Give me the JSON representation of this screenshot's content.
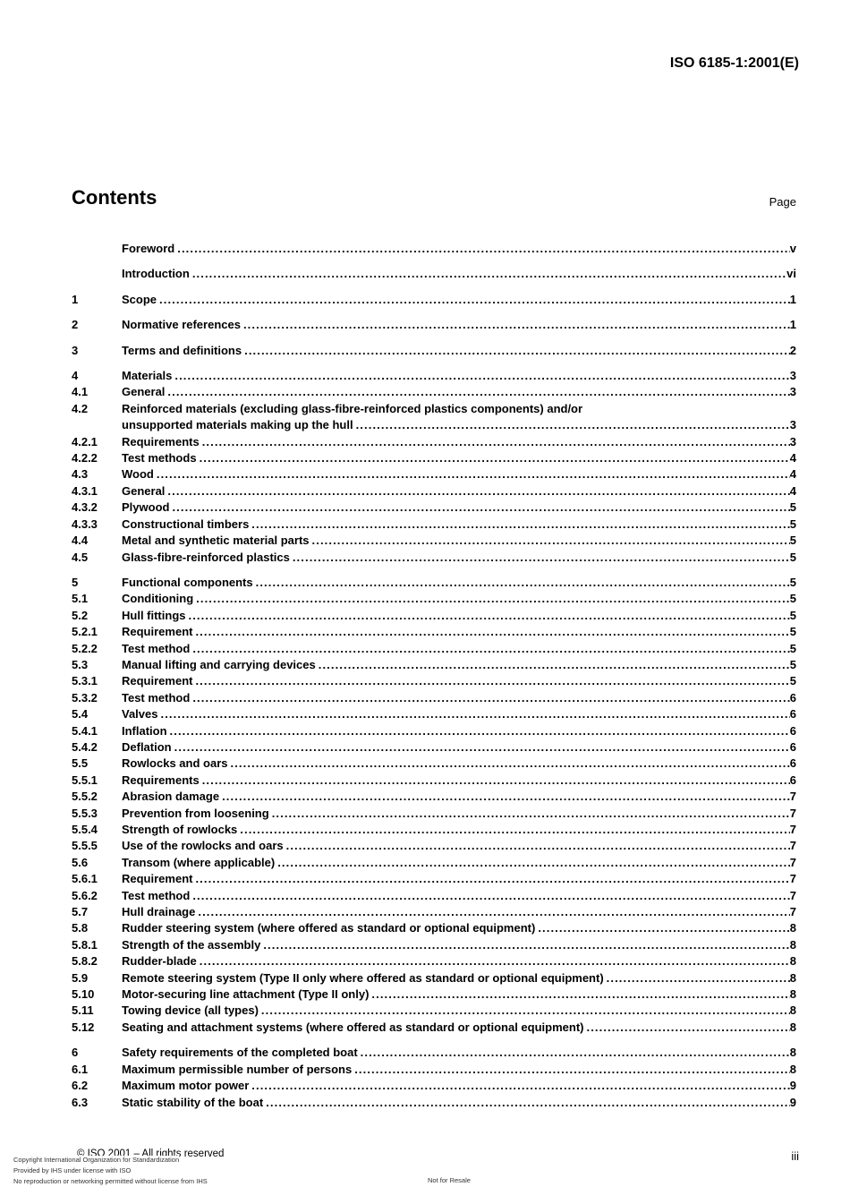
{
  "header": {
    "doc_id": "ISO 6185-1:2001(E)"
  },
  "contents": {
    "title": "Contents",
    "page_label": "Page"
  },
  "toc": [
    {
      "num": "",
      "title": "Foreword",
      "page": "v",
      "gap": true
    },
    {
      "num": "",
      "title": "Introduction",
      "page": "vi",
      "gap": true
    },
    {
      "num": "1",
      "title": "Scope",
      "page": "1",
      "gap": true
    },
    {
      "num": "2",
      "title": "Normative references",
      "page": "1",
      "gap": true
    },
    {
      "num": "3",
      "title": "Terms and definitions",
      "page": "2",
      "gap": true
    },
    {
      "num": "4",
      "title": "Materials",
      "page": "3",
      "gap": true
    },
    {
      "num": "4.1",
      "title": "General",
      "page": "3"
    },
    {
      "num": "4.2",
      "title": "Reinforced materials (excluding glass-fibre-reinforced plastics components) and/or",
      "title2": "unsupported materials making up the hull",
      "page": "3"
    },
    {
      "num": "4.2.1",
      "title": "Requirements",
      "page": "3"
    },
    {
      "num": "4.2.2",
      "title": "Test methods",
      "page": "4"
    },
    {
      "num": "4.3",
      "title": "Wood",
      "page": "4"
    },
    {
      "num": "4.3.1",
      "title": "General",
      "page": "4"
    },
    {
      "num": "4.3.2",
      "title": "Plywood",
      "page": "5"
    },
    {
      "num": "4.3.3",
      "title": "Constructional timbers",
      "page": "5"
    },
    {
      "num": "4.4",
      "title": "Metal and synthetic material parts",
      "page": "5"
    },
    {
      "num": "4.5",
      "title": "Glass-fibre-reinforced plastics",
      "page": "5"
    },
    {
      "num": "5",
      "title": "Functional components",
      "page": "5",
      "gap": true
    },
    {
      "num": "5.1",
      "title": "Conditioning",
      "page": "5"
    },
    {
      "num": "5.2",
      "title": "Hull fittings",
      "page": "5"
    },
    {
      "num": "5.2.1",
      "title": "Requirement",
      "page": "5"
    },
    {
      "num": "5.2.2",
      "title": "Test method",
      "page": "5"
    },
    {
      "num": "5.3",
      "title": "Manual lifting and carrying devices",
      "page": "5"
    },
    {
      "num": "5.3.1",
      "title": "Requirement",
      "page": "5"
    },
    {
      "num": "5.3.2",
      "title": "Test method",
      "page": "6"
    },
    {
      "num": "5.4",
      "title": "Valves",
      "page": "6"
    },
    {
      "num": "5.4.1",
      "title": "Inflation",
      "page": "6"
    },
    {
      "num": "5.4.2",
      "title": "Deflation",
      "page": "6"
    },
    {
      "num": "5.5",
      "title": "Rowlocks and oars",
      "page": "6"
    },
    {
      "num": "5.5.1",
      "title": "Requirements",
      "page": "6"
    },
    {
      "num": "5.5.2",
      "title": "Abrasion damage",
      "page": "7"
    },
    {
      "num": "5.5.3",
      "title": "Prevention from loosening",
      "page": "7"
    },
    {
      "num": "5.5.4",
      "title": "Strength of rowlocks",
      "page": "7"
    },
    {
      "num": "5.5.5",
      "title": "Use of the rowlocks and oars",
      "page": "7"
    },
    {
      "num": "5.6",
      "title": "Transom (where applicable)",
      "page": "7"
    },
    {
      "num": "5.6.1",
      "title": "Requirement",
      "page": "7"
    },
    {
      "num": "5.6.2",
      "title": "Test method",
      "page": "7"
    },
    {
      "num": "5.7",
      "title": "Hull drainage",
      "page": "7"
    },
    {
      "num": "5.8",
      "title": "Rudder steering system (where offered as standard or optional equipment)",
      "page": "8"
    },
    {
      "num": "5.8.1",
      "title": "Strength of the assembly",
      "page": "8"
    },
    {
      "num": "5.8.2",
      "title": "Rudder-blade",
      "page": "8"
    },
    {
      "num": "5.9",
      "title": "Remote steering system (Type II only where offered as standard or optional equipment)",
      "page": "8"
    },
    {
      "num": "5.10",
      "title": "Motor-securing line attachment (Type II only)",
      "page": "8"
    },
    {
      "num": "5.11",
      "title": "Towing device (all types)",
      "page": "8"
    },
    {
      "num": "5.12",
      "title": "Seating and attachment systems (where offered as standard or optional equipment)",
      "page": "8"
    },
    {
      "num": "6",
      "title": "Safety requirements of the completed boat",
      "page": "8",
      "gap": true
    },
    {
      "num": "6.1",
      "title": "Maximum permissible number of persons",
      "page": "8"
    },
    {
      "num": "6.2",
      "title": "Maximum motor power",
      "page": "9"
    },
    {
      "num": "6.3",
      "title": "Static stability of the boat",
      "page": "9"
    }
  ],
  "footer": {
    "iso_copyright": "© ISO 2001 – All rights reserved",
    "stamp_lines": [
      "Copyright International Organization for Standardization",
      "Provided by IHS under license with ISO",
      "No reproduction or networking permitted without license from IHS"
    ],
    "not_for_resale": "Not for Resale",
    "page_number": "iii"
  },
  "colors": {
    "text": "#000000",
    "stamp_text": "#333333",
    "background": "#ffffff"
  }
}
